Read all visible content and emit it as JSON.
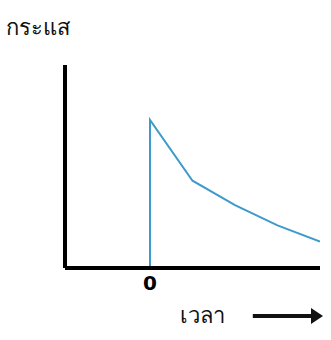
{
  "chart_data": {
    "type": "line",
    "y_label": "กระแส",
    "x_label": "เวลา",
    "x": [
      -1,
      0,
      0,
      0.5,
      1,
      1.5,
      2
    ],
    "values": [
      0,
      0,
      0.73,
      0.43,
      0.31,
      0.21,
      0.13
    ],
    "color": "#3d9bcc",
    "xlim": [
      -1,
      2
    ],
    "xticks": [
      0
    ],
    "ylim": [
      0,
      1
    ],
    "yticks": [],
    "tick_labels": "x",
    "grid": false
  }
}
